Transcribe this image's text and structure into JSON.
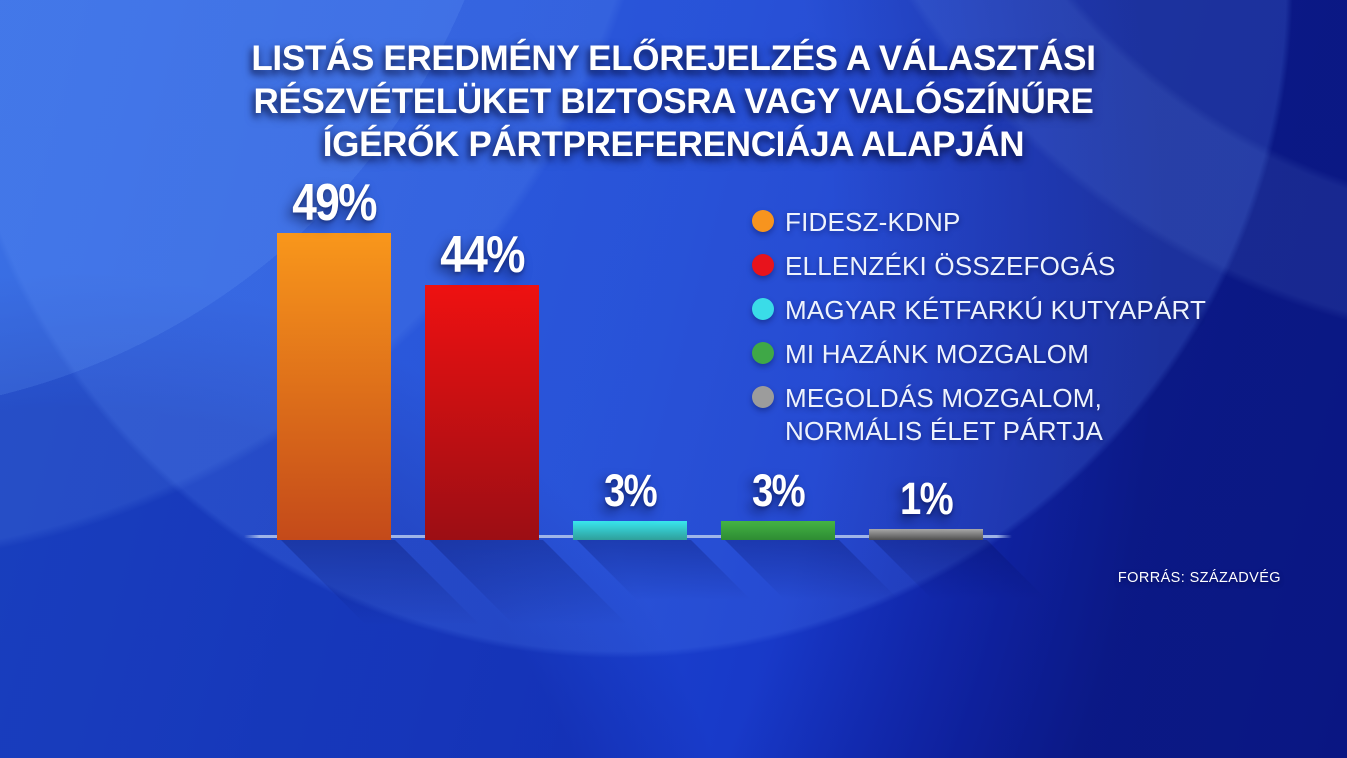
{
  "title": {
    "line1": "LISTÁS EREDMÉNY ELŐREJELZÉS A VÁLASZTÁSI",
    "line2": "RÉSZVÉTELÜKET BIZTOSRA VAGY VALÓSZÍNŰRE",
    "line3": "ÍGÉRŐK PÁRTPREFERENCIÁJA ALAPJÁN"
  },
  "chart_data": {
    "type": "bar",
    "title": "LISTÁS EREDMÉNY ELŐREJELZÉS A VÁLASZTÁSI RÉSZVÉTELÜKET BIZTOSRA VAGY VALÓSZÍNŰRE ÍGÉRŐK PÁRTPREFERENCIÁJA ALAPJÁN",
    "categories": [
      "FIDESZ-KDNP",
      "ELLENZÉKI ÖSSZEFOGÁS",
      "MAGYAR KÉTFARKÚ KUTYAPÁRT",
      "MI HAZÁNK MOZGALOM",
      "MEGOLDÁS MOZGALOM, NORMÁLIS ÉLET PÁRTJA"
    ],
    "values": [
      49,
      44,
      3,
      3,
      1
    ],
    "value_labels": [
      "49%",
      "44%",
      "3%",
      "3%",
      "1%"
    ],
    "colors": [
      "#F7941E",
      "#E8131C",
      "#3ADCE8",
      "#3FA847",
      "#9C9C9C"
    ],
    "bar_gradients": [
      [
        "#F9971B",
        "#C44A1A"
      ],
      [
        "#EE1111",
        "#9C0E14"
      ],
      [
        "#39E6EE",
        "#2F9E9A"
      ],
      [
        "#44B344",
        "#2E8C33"
      ],
      [
        "#A9A9A9",
        "#4F4F4F"
      ]
    ],
    "xlabel": "",
    "ylabel": "",
    "ylim": [
      0,
      50
    ],
    "grid": false,
    "legend_position": "right",
    "axis_line_color": "#ACC0EB",
    "background_color": "#1B44D0"
  },
  "legend": {
    "items": [
      {
        "label": "FIDESZ-KDNP",
        "label2": "",
        "color": "#F7941E"
      },
      {
        "label": "ELLENZÉKI ÖSSZEFOGÁS",
        "label2": "",
        "color": "#E8131C"
      },
      {
        "label": "MAGYAR KÉTFARKÚ KUTYAPÁRT",
        "label2": "",
        "color": "#3ADCE8"
      },
      {
        "label": "MI HAZÁNK MOZGALOM",
        "label2": "",
        "color": "#3FA847"
      },
      {
        "label": "MEGOLDÁS MOZGALOM,",
        "label2": "NORMÁLIS ÉLET PÁRTJA",
        "color": "#9C9C9C"
      }
    ]
  },
  "source": {
    "label": "FORRÁS: SZÁZADVÉG"
  }
}
